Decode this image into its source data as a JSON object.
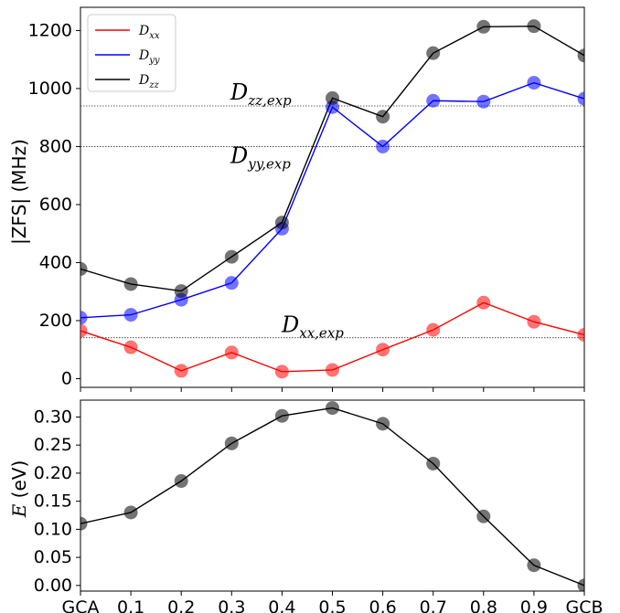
{
  "chart_data": [
    {
      "type": "line",
      "title": "",
      "xlabel": "",
      "ylabel": "|ZFS| (MHz)",
      "ylim": [
        -30,
        1280
      ],
      "categories": [
        "GCA",
        "0.1",
        "0.2",
        "0.3",
        "0.4",
        "0.5",
        "0.6",
        "0.7",
        "0.8",
        "0.9",
        "GCB"
      ],
      "yticks": [
        "0",
        "200",
        "400",
        "600",
        "800",
        "1000",
        "1200"
      ],
      "grid": false,
      "legend_position": "top-left",
      "series": [
        {
          "name": "D_xx",
          "legend_main": "D",
          "legend_sub": "xx",
          "color": "#ff0000",
          "values": [
            165,
            108,
            27,
            90,
            24,
            30,
            100,
            168,
            262,
            196,
            151
          ]
        },
        {
          "name": "D_yy",
          "legend_main": "D",
          "legend_sub": "yy",
          "color": "#0000ff",
          "values": [
            210,
            220,
            272,
            330,
            517,
            936,
            800,
            958,
            955,
            1020,
            965
          ]
        },
        {
          "name": "D_zz",
          "legend_main": "D",
          "legend_sub": "zz",
          "color": "#000000",
          "values": [
            378,
            326,
            302,
            420,
            538,
            967,
            903,
            1122,
            1213,
            1215,
            1114
          ]
        }
      ],
      "reference_lines": [
        {
          "main": "D",
          "sub": "zz,exp",
          "value": 940
        },
        {
          "main": "D",
          "sub": "yy,exp",
          "value": 800
        },
        {
          "main": "D",
          "sub": "xx,exp",
          "value": 141
        }
      ]
    },
    {
      "type": "line",
      "title": "",
      "xlabel": "",
      "ylabel": "E (eV)",
      "ylim": [
        -0.01,
        0.33
      ],
      "categories": [
        "GCA",
        "0.1",
        "0.2",
        "0.3",
        "0.4",
        "0.5",
        "0.6",
        "0.7",
        "0.8",
        "0.9",
        "GCB"
      ],
      "yticks": [
        "0.00",
        "0.05",
        "0.10",
        "0.15",
        "0.20",
        "0.25",
        "0.30"
      ],
      "grid": false,
      "series": [
        {
          "color": "#000000",
          "values": [
            0.11,
            0.13,
            0.186,
            0.253,
            0.302,
            0.316,
            0.288,
            0.217,
            0.123,
            0.036,
            0.0
          ]
        }
      ]
    }
  ]
}
